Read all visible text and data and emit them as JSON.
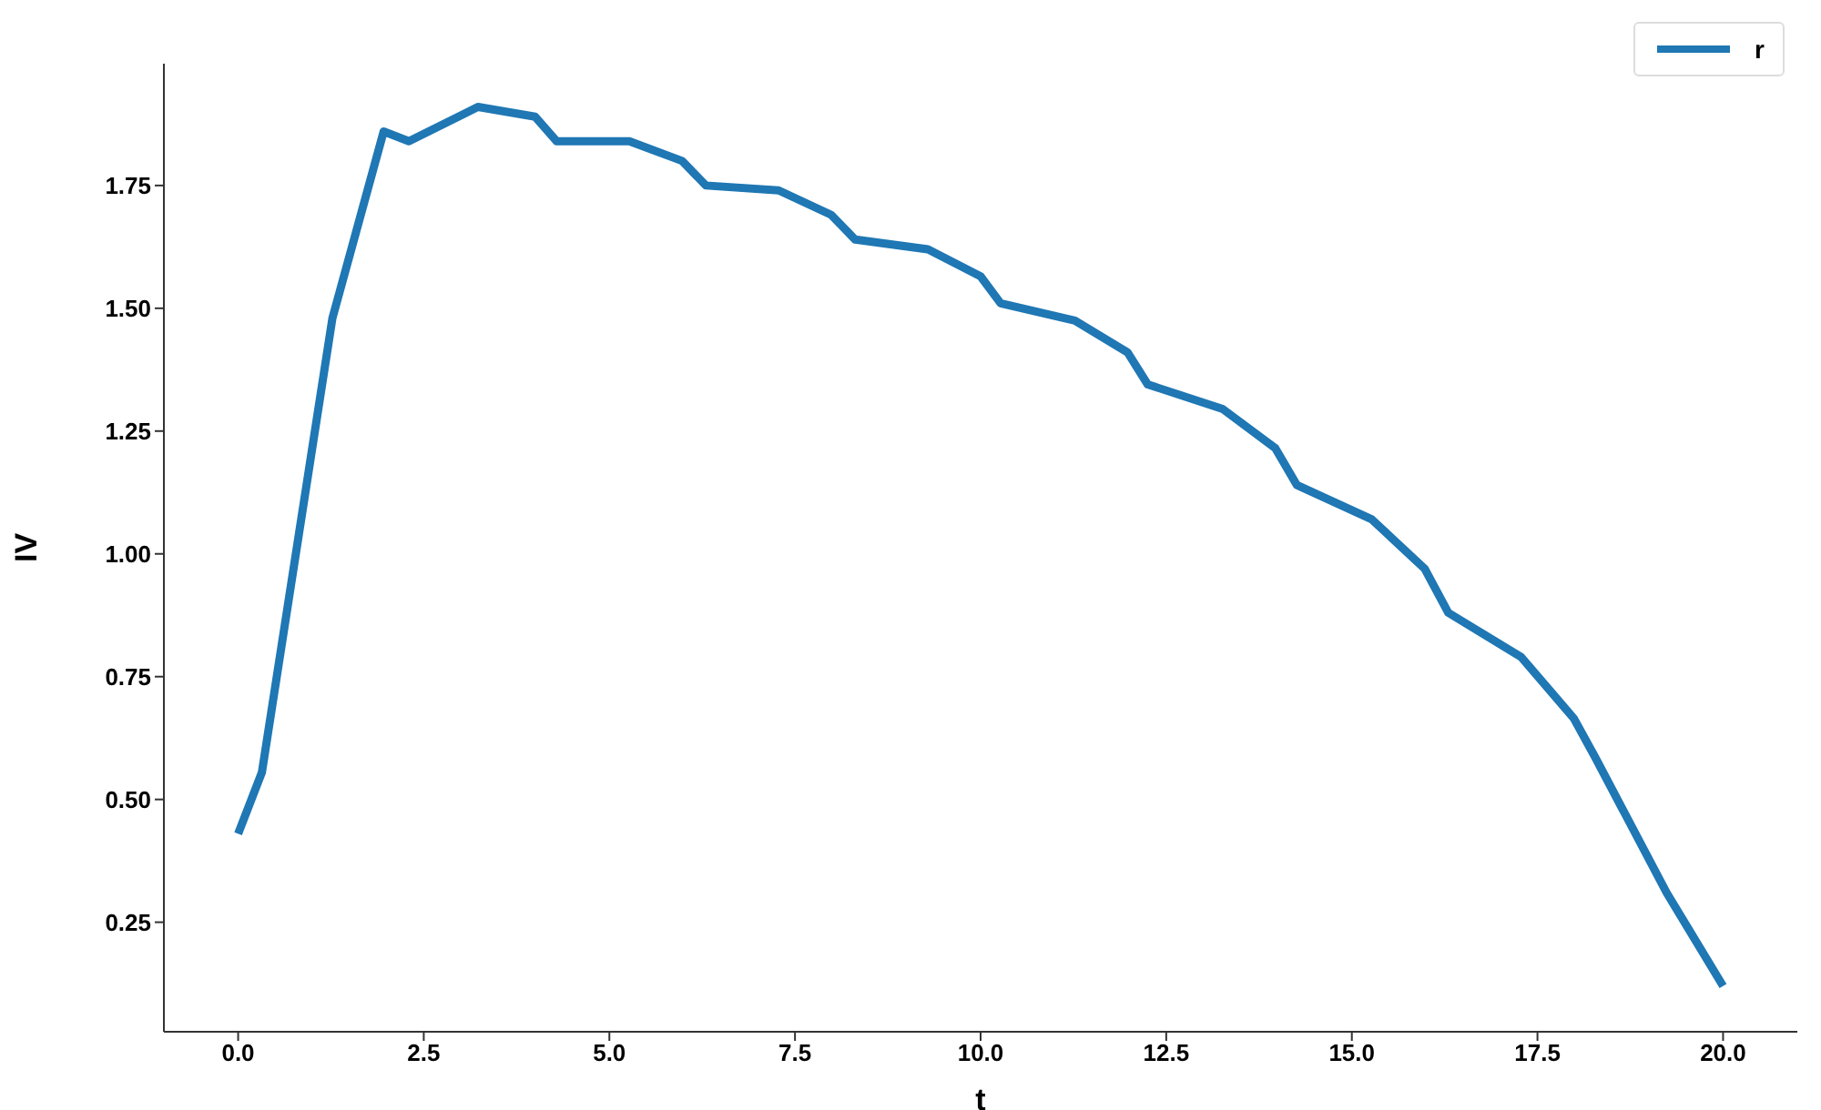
{
  "chart_data": {
    "type": "line",
    "xlabel": "t",
    "ylabel": "IV",
    "x": [
      0,
      0.32,
      1.27,
      1.96,
      2.3,
      3.23,
      4.0,
      4.29,
      5.27,
      5.98,
      6.3,
      7.28,
      7.99,
      8.31,
      9.29,
      10.0,
      10.27,
      11.27,
      11.98,
      12.25,
      13.26,
      13.97,
      14.26,
      15.27,
      15.98,
      16.3,
      17.28,
      17.99,
      18.28,
      19.24,
      20.0
    ],
    "series": [
      {
        "name": "r",
        "color": "#1f77b4",
        "values": [
          0.43,
          0.555,
          1.48,
          1.86,
          1.84,
          1.91,
          1.89,
          1.84,
          1.84,
          1.8,
          1.75,
          1.74,
          1.69,
          1.64,
          1.62,
          1.565,
          1.51,
          1.475,
          1.41,
          1.345,
          1.295,
          1.215,
          1.14,
          1.07,
          0.97,
          0.88,
          0.79,
          0.665,
          0.585,
          0.31,
          0.12
        ]
      }
    ],
    "xlim": [
      -1,
      21
    ],
    "xticks": [
      {
        "value": 0,
        "label": "0.0"
      },
      {
        "value": 2.5,
        "label": "2.5"
      },
      {
        "value": 5,
        "label": "5.0"
      },
      {
        "value": 7.5,
        "label": "7.5"
      },
      {
        "value": 10,
        "label": "10.0"
      },
      {
        "value": 12.5,
        "label": "12.5"
      },
      {
        "value": 15,
        "label": "15.0"
      },
      {
        "value": 17.5,
        "label": "17.5"
      },
      {
        "value": 20,
        "label": "20.0"
      }
    ],
    "ylim": [
      0.027,
      1.998
    ],
    "yticks": [
      0.25,
      {
        "value": 0.5,
        "label": "0.50"
      },
      0.75,
      {
        "value": 1,
        "label": "1.00"
      },
      1.25,
      {
        "value": 1.5,
        "label": "1.50"
      },
      1.75
    ],
    "legend": "top right",
    "grid": false,
    "marker": "none",
    "line_style": "solid"
  }
}
